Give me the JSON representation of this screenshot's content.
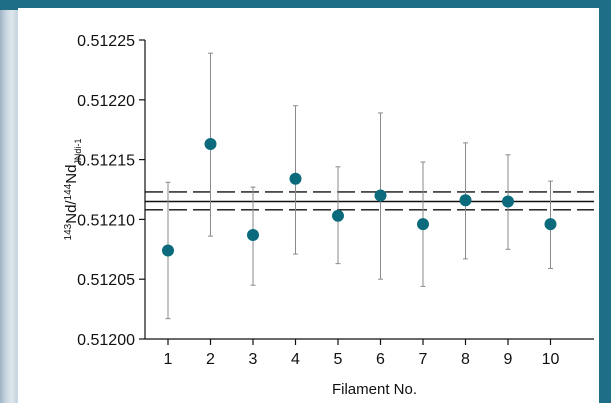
{
  "chart_data": {
    "type": "scatter",
    "xlabel": "Filament No.",
    "ylabel": {
      "sup1": "143",
      "nd1": "Nd/",
      "sup2": "144",
      "nd2": "Nd",
      "sub": "JNdi-1"
    },
    "x_ticks": [
      "1",
      "2",
      "3",
      "4",
      "5",
      "6",
      "7",
      "8",
      "9",
      "10"
    ],
    "y_ticks": [
      "0.51200",
      "0.51205",
      "0.51210",
      "0.51215",
      "0.51220",
      "0.51225"
    ],
    "ylim": [
      0.512,
      0.51225
    ],
    "y_tick_values": [
      0.512,
      0.51205,
      0.5121,
      0.51215,
      0.5122,
      0.51225
    ],
    "points": [
      {
        "x": 1,
        "y": 0.512074,
        "ylow": 0.512017,
        "yhigh": 0.512131
      },
      {
        "x": 2,
        "y": 0.512163,
        "ylow": 0.512086,
        "yhigh": 0.512239
      },
      {
        "x": 3,
        "y": 0.512087,
        "ylow": 0.512045,
        "yhigh": 0.512127
      },
      {
        "x": 4,
        "y": 0.512134,
        "ylow": 0.512071,
        "yhigh": 0.512195
      },
      {
        "x": 5,
        "y": 0.512103,
        "ylow": 0.512063,
        "yhigh": 0.512144
      },
      {
        "x": 6,
        "y": 0.51212,
        "ylow": 0.51205,
        "yhigh": 0.512189
      },
      {
        "x": 7,
        "y": 0.512096,
        "ylow": 0.512044,
        "yhigh": 0.512148
      },
      {
        "x": 8,
        "y": 0.512116,
        "ylow": 0.512067,
        "yhigh": 0.512164
      },
      {
        "x": 9,
        "y": 0.512115,
        "ylow": 0.512075,
        "yhigh": 0.512154
      },
      {
        "x": 10,
        "y": 0.512096,
        "ylow": 0.512059,
        "yhigh": 0.512132
      }
    ],
    "mean_line": 0.512115,
    "band_lines": [
      0.512123,
      0.512108
    ],
    "grid": false,
    "colors": {
      "marker": "#0b6b7d",
      "errorbar": "#8a8a8a",
      "axis": "#111111",
      "frame": "#1e6e87"
    }
  }
}
